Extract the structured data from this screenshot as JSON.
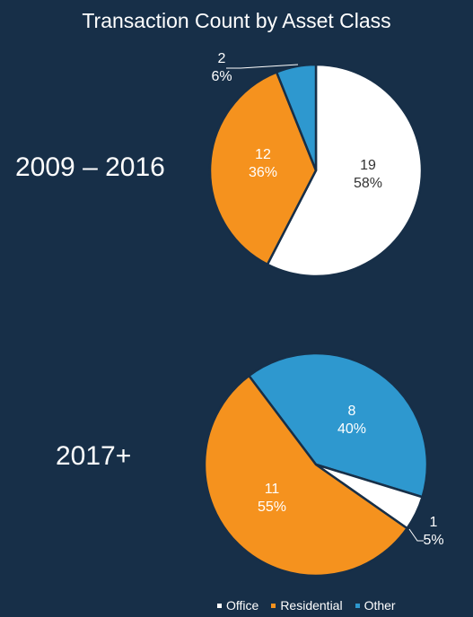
{
  "chart_data": [
    {
      "type": "pie",
      "title": "Transaction Count by Asset Class",
      "period_label": "2009 – 2016",
      "slices": [
        {
          "name": "Office",
          "count": 19,
          "count_label": "19",
          "pct_label": "58%",
          "color": "#ffffff"
        },
        {
          "name": "Residential",
          "count": 12,
          "count_label": "12",
          "pct_label": "36%",
          "color": "#f5921e"
        },
        {
          "name": "Other",
          "count": 2,
          "count_label": "2",
          "pct_label": "6%",
          "color": "#2e98cf"
        }
      ]
    },
    {
      "type": "pie",
      "period_label": "2017+",
      "slices": [
        {
          "name": "Office",
          "count": 1,
          "count_label": "1",
          "pct_label": "5%",
          "color": "#ffffff"
        },
        {
          "name": "Residential",
          "count": 11,
          "count_label": "11",
          "pct_label": "55%",
          "color": "#f5921e"
        },
        {
          "name": "Other",
          "count": 8,
          "count_label": "8",
          "pct_label": "40%",
          "color": "#2e98cf"
        }
      ]
    }
  ],
  "header": {
    "title": "Transaction Count by Asset Class"
  },
  "legend": [
    {
      "label": "Office",
      "color": "#ffffff"
    },
    {
      "label": "Residential",
      "color": "#f5921e"
    },
    {
      "label": "Other",
      "color": "#2e98cf"
    }
  ],
  "colors": {
    "background": "#172f48",
    "slice_border": "#172f48"
  }
}
